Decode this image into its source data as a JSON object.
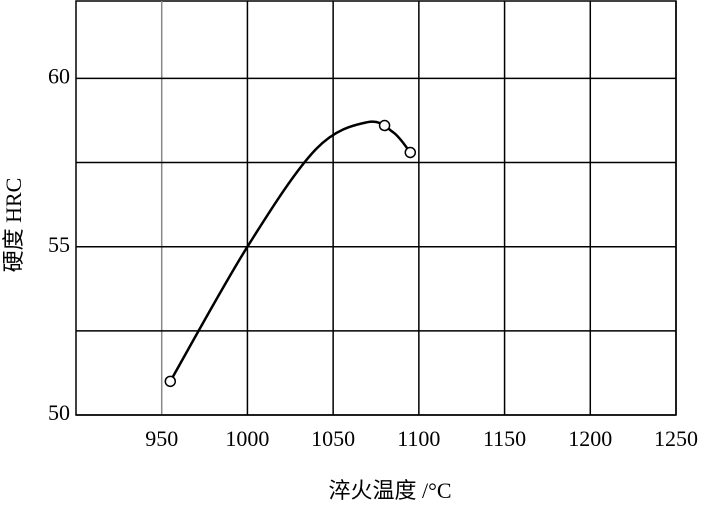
{
  "chart_data": {
    "type": "line",
    "x_label": "淬火温度 /°C",
    "y_label": "硬度 HRC",
    "xlim": [
      900,
      1250
    ],
    "xticks": [
      950,
      1000,
      1050,
      1100,
      1150,
      1200,
      1250
    ],
    "ylim": [
      50,
      62.3
    ],
    "yticks": [
      50,
      55,
      60
    ],
    "minor_yticks": [
      52.5,
      57.5
    ],
    "grid": true,
    "series": [
      {
        "color": "#000000",
        "markers": false,
        "x": [
          955,
          1000,
          1040,
          1070,
          1085,
          1095
        ],
        "values": [
          51,
          55,
          57.9,
          58.7,
          58.4,
          57.8
        ]
      },
      {
        "color": "#000000",
        "markers": true,
        "x": [
          955,
          1080,
          1095
        ],
        "values": [
          51,
          58.6,
          57.8
        ]
      }
    ]
  }
}
